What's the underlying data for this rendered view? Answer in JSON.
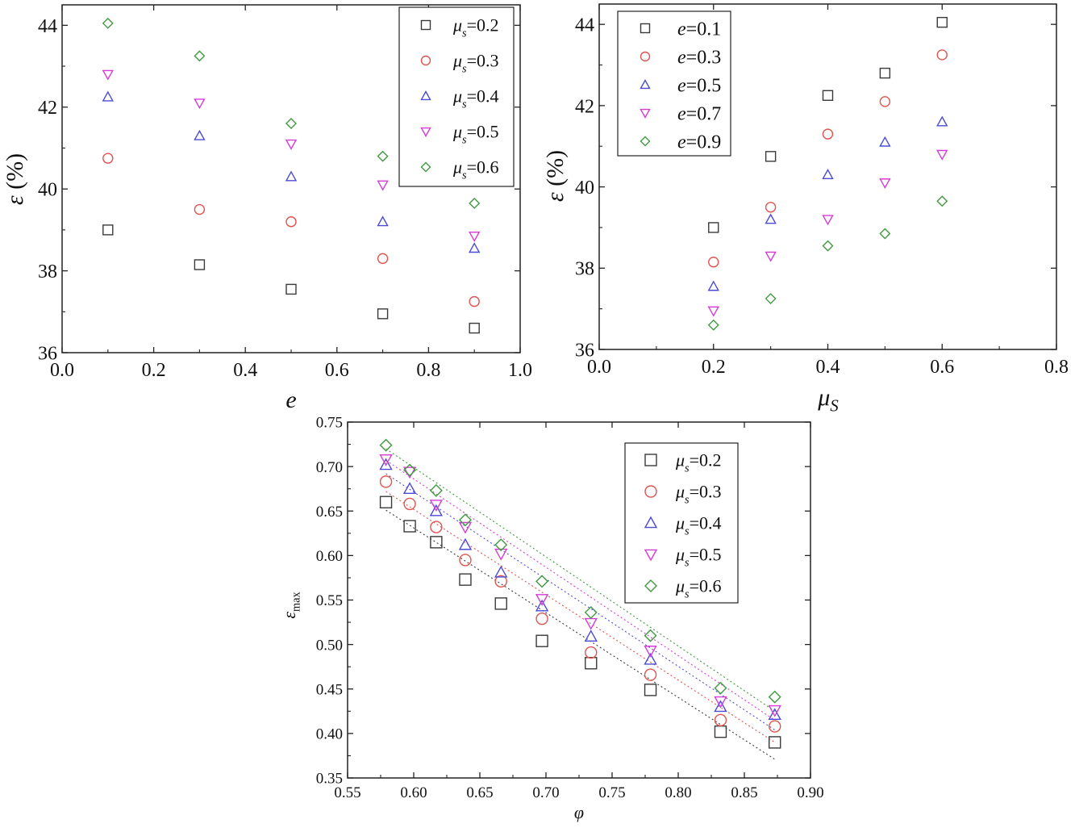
{
  "chart_data": [
    {
      "type": "scatter",
      "x_name": "e",
      "y_name": "ε (%)",
      "xlim": [
        0.0,
        1.0
      ],
      "ylim": [
        36,
        44.5
      ],
      "xticks": [
        "0.0",
        "0.2",
        "0.4",
        "0.6",
        "0.8",
        "1.0"
      ],
      "yticks": [
        "36",
        "38",
        "40",
        "42",
        "44"
      ],
      "legend_position": "top-right",
      "grid": false,
      "x": [
        0.1,
        0.3,
        0.5,
        0.7,
        0.9
      ],
      "series": [
        {
          "label_sym": "μ",
          "label_sub": "s",
          "label_val": "=0.2",
          "marker": "square",
          "color": "#3a3a3a",
          "values": [
            39.0,
            38.15,
            37.55,
            36.95,
            36.6
          ]
        },
        {
          "label_sym": "μ",
          "label_sub": "s",
          "label_val": "=0.3",
          "marker": "circle",
          "color": "#e0534f",
          "values": [
            40.75,
            39.5,
            39.2,
            38.3,
            37.25
          ]
        },
        {
          "label_sym": "μ",
          "label_sub": "s",
          "label_val": "=0.4",
          "marker": "triangle-up",
          "color": "#4b4bd6",
          "values": [
            42.25,
            41.3,
            40.3,
            39.2,
            38.55
          ]
        },
        {
          "label_sym": "μ",
          "label_sub": "s",
          "label_val": "=0.5",
          "marker": "triangle-down",
          "color": "#d63bd6",
          "values": [
            42.8,
            42.1,
            41.1,
            40.1,
            38.85
          ]
        },
        {
          "label_sym": "μ",
          "label_sub": "s",
          "label_val": "=0.6",
          "marker": "diamond",
          "color": "#3f9a3f",
          "values": [
            44.05,
            43.25,
            41.6,
            40.8,
            39.65
          ]
        }
      ]
    },
    {
      "type": "scatter",
      "x_name": "μ",
      "x_name_sub": "S",
      "y_name": "ε (%)",
      "xlim": [
        0.0,
        0.8
      ],
      "ylim": [
        36,
        44.5
      ],
      "xticks": [
        "0.0",
        "0.2",
        "0.4",
        "0.6",
        "0.8"
      ],
      "yticks": [
        "36",
        "38",
        "40",
        "42",
        "44"
      ],
      "legend_position": "top-left",
      "grid": false,
      "x": [
        0.2,
        0.3,
        0.4,
        0.5,
        0.6
      ],
      "series": [
        {
          "label_sym": "e",
          "label_val": "=0.1",
          "marker": "square",
          "color": "#3a3a3a",
          "values": [
            39.0,
            40.75,
            42.25,
            42.8,
            44.05
          ]
        },
        {
          "label_sym": "e",
          "label_val": "=0.3",
          "marker": "circle",
          "color": "#e0534f",
          "values": [
            38.15,
            39.5,
            41.3,
            42.1,
            43.25
          ]
        },
        {
          "label_sym": "e",
          "label_val": "=0.5",
          "marker": "triangle-up",
          "color": "#4b4bd6",
          "values": [
            37.55,
            39.2,
            40.3,
            41.1,
            41.6
          ]
        },
        {
          "label_sym": "e",
          "label_val": "=0.7",
          "marker": "triangle-down",
          "color": "#d63bd6",
          "values": [
            36.95,
            38.3,
            39.2,
            40.1,
            40.8
          ]
        },
        {
          "label_sym": "e",
          "label_val": "=0.9",
          "marker": "diamond",
          "color": "#3f9a3f",
          "values": [
            36.6,
            37.25,
            38.55,
            38.85,
            39.65
          ]
        }
      ]
    },
    {
      "type": "scatter",
      "x_name": "φ",
      "y_name": "ε",
      "y_name_sub": "max",
      "xlim": [
        0.55,
        0.9
      ],
      "ylim": [
        0.35,
        0.75
      ],
      "xticks": [
        "0.55",
        "0.60",
        "0.65",
        "0.70",
        "0.75",
        "0.80",
        "0.85",
        "0.90"
      ],
      "yticks": [
        "0.35",
        "0.40",
        "0.45",
        "0.50",
        "0.55",
        "0.60",
        "0.65",
        "0.70",
        "0.75"
      ],
      "legend_position": "top-right",
      "grid": false,
      "fit_lines": "dotted",
      "x": [
        0.579,
        0.597,
        0.617,
        0.639,
        0.666,
        0.697,
        0.734,
        0.779,
        0.832,
        0.873
      ],
      "series": [
        {
          "label_sym": "μ",
          "label_sub": "s",
          "label_val": "=0.2",
          "marker": "square",
          "color": "#3a3a3a",
          "values": [
            0.66,
            0.633,
            0.615,
            0.573,
            0.546,
            0.504,
            0.479,
            0.449,
            0.402,
            0.39
          ],
          "fit": [
            0.651,
            0.371
          ]
        },
        {
          "label_sym": "μ",
          "label_sub": "s",
          "label_val": "=0.3",
          "marker": "circle",
          "color": "#e0534f",
          "values": [
            0.683,
            0.658,
            0.632,
            0.595,
            0.571,
            0.529,
            0.491,
            0.466,
            0.415,
            0.408
          ],
          "fit": [
            0.672,
            0.39
          ]
        },
        {
          "label_sym": "μ",
          "label_sub": "s",
          "label_val": "=0.4",
          "marker": "triangle-up",
          "color": "#4b4bd6",
          "values": [
            0.702,
            0.675,
            0.65,
            0.612,
            0.581,
            0.543,
            0.509,
            0.483,
            0.43,
            0.421
          ],
          "fit": [
            0.692,
            0.404
          ]
        },
        {
          "label_sym": "μ",
          "label_sub": "s",
          "label_val": "=0.5",
          "marker": "triangle-down",
          "color": "#d63bd6",
          "values": [
            0.708,
            0.694,
            0.657,
            0.632,
            0.602,
            0.551,
            0.524,
            0.493,
            0.436,
            0.426
          ],
          "fit": [
            0.707,
            0.415
          ]
        },
        {
          "label_sym": "μ",
          "label_sub": "s",
          "label_val": "=0.6",
          "marker": "diamond",
          "color": "#3f9a3f",
          "values": [
            0.724,
            0.696,
            0.673,
            0.64,
            0.612,
            0.571,
            0.536,
            0.51,
            0.451,
            0.441
          ],
          "fit": [
            0.72,
            0.425
          ]
        }
      ]
    }
  ]
}
